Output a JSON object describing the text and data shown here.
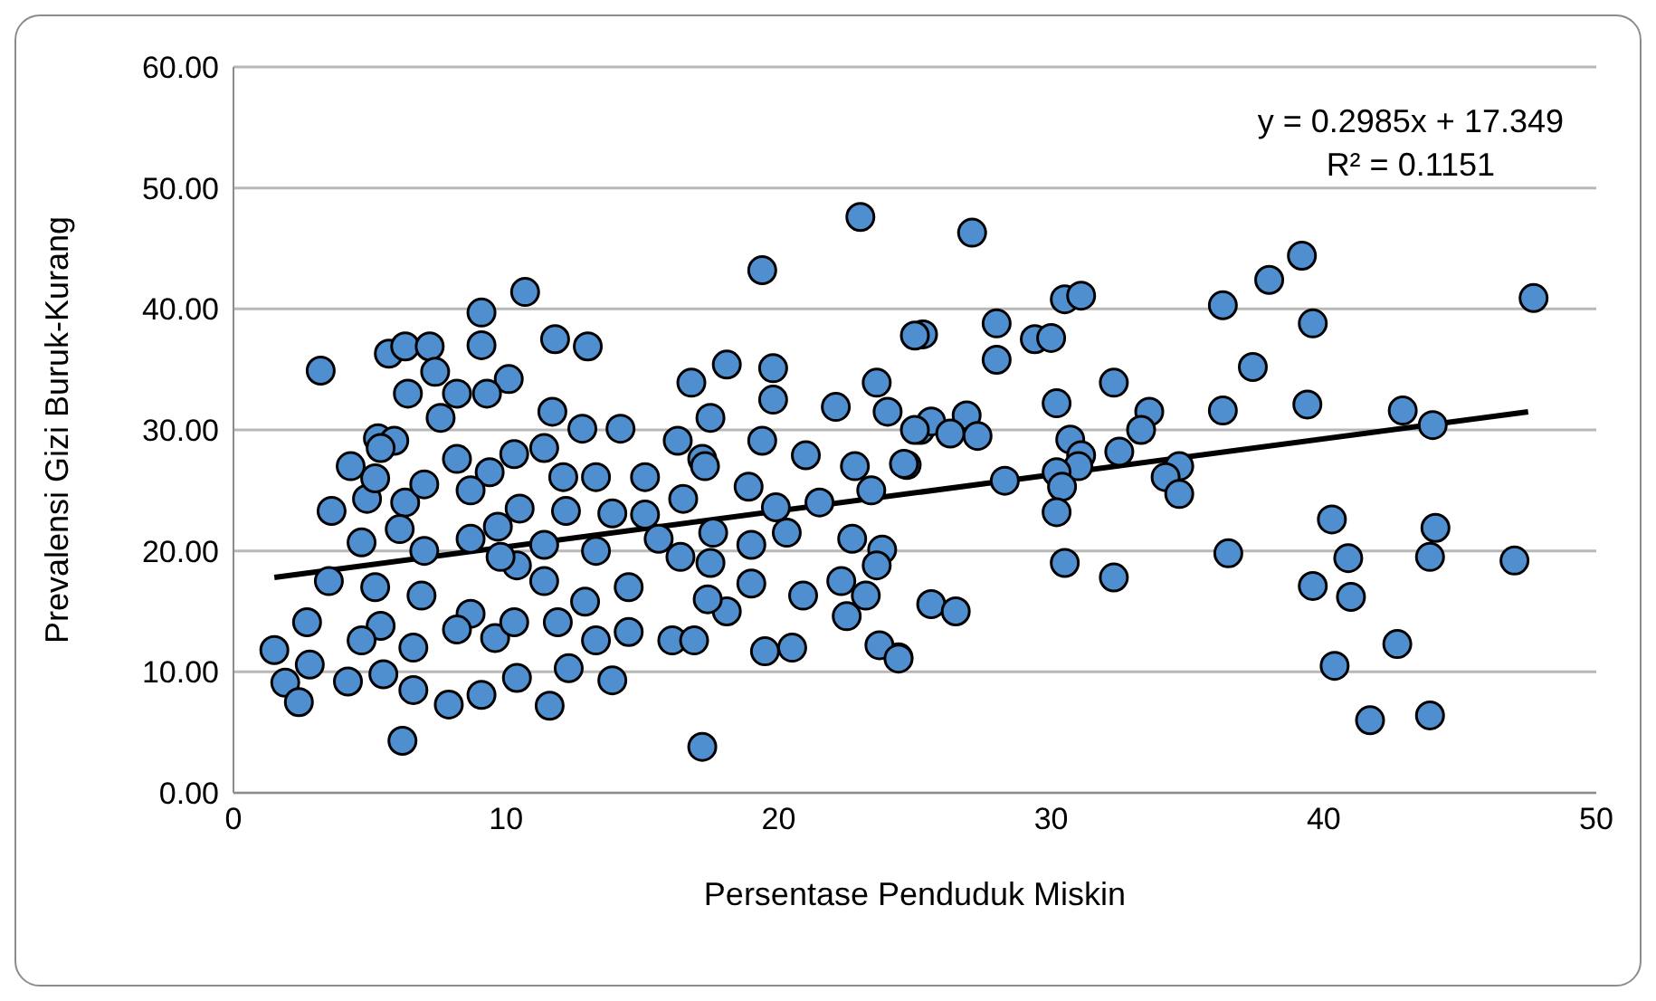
{
  "chart_data": {
    "type": "scatter",
    "xlabel": "Persentase Penduduk Miskin",
    "ylabel": "Prevalensi Gizi Buruk-Kurang",
    "xlim": [
      0,
      50
    ],
    "xticks": [
      0,
      10,
      20,
      30,
      40,
      50
    ],
    "ylim": [
      0,
      60
    ],
    "yticks": [
      {
        "value": 0,
        "label": "0.00"
      },
      {
        "value": 10,
        "label": "10.00"
      },
      {
        "value": 20,
        "label": "20.00"
      },
      {
        "value": 30,
        "label": "30.00"
      },
      {
        "value": 40,
        "label": "40.00"
      },
      {
        "value": 50,
        "label": "50.00"
      },
      {
        "value": 60,
        "label": "60.00"
      }
    ],
    "grid": "y",
    "legend": false,
    "marker": "circle",
    "annotations": [
      "y = 0.2985x + 17.349",
      "R² = 0.1151"
    ],
    "series": [
      {
        "color": "#4f8fcf",
        "x": [
          47.7,
          47.0,
          27.1,
          30.5,
          31.1,
          36.3,
          38.0,
          39.2,
          25.3,
          28.0,
          28.0,
          29.4,
          30.0,
          39.6,
          37.4,
          32.3,
          30.2,
          36.3,
          39.4,
          42.9,
          44.0,
          33.6,
          33.3,
          25.2,
          25.6,
          26.9,
          27.3,
          26.3,
          30.7,
          31.1,
          31.0,
          32.5,
          34.7,
          34.2,
          34.7,
          24.7,
          28.3,
          30.2,
          30.4,
          30.2,
          40.3,
          44.1,
          40.9,
          43.9,
          36.5,
          30.5,
          32.3,
          39.6,
          41.0,
          25.6,
          26.5,
          42.7,
          40.4,
          41.7,
          43.9,
          24.4,
          23.0,
          19.4,
          10.7,
          9.1,
          9.1,
          3.2,
          5.7,
          6.3,
          7.2,
          7.4,
          11.8,
          13.0,
          10.1,
          9.3,
          8.2,
          6.4,
          7.6,
          16.8,
          18.1,
          19.8,
          19.8,
          23.6,
          24.0,
          22.1,
          25.0,
          5.3,
          5.9,
          11.7,
          12.8,
          14.2,
          17.5,
          17.2,
          19.4,
          21.0,
          22.8,
          24.6,
          3.6,
          4.9,
          6.3,
          4.7,
          6.1,
          8.2,
          9.4,
          10.3,
          11.4,
          12.1,
          13.3,
          15.1,
          16.3,
          17.3,
          18.9,
          19.9,
          21.5,
          23.4,
          9.7,
          10.5,
          12.2,
          13.9,
          15.1,
          16.5,
          20.3,
          22.7,
          23.8,
          23.6,
          3.5,
          5.2,
          6.9,
          8.7,
          10.4,
          11.4,
          12.9,
          14.5,
          16.4,
          17.5,
          19.0,
          20.9,
          22.5,
          23.2,
          19.5,
          20.5,
          23.7,
          24.4,
          2.7,
          1.5,
          1.9,
          2.4,
          2.8,
          4.2,
          5.4,
          5.5,
          6.6,
          7.9,
          9.6,
          9.1,
          10.4,
          11.6,
          13.3,
          13.9,
          12.3,
          14.5,
          16.1,
          16.9,
          18.1,
          17.4,
          6.2,
          17.2,
          25.0,
          22.3,
          7.0,
          8.7,
          9.8,
          11.4,
          13.3,
          15.6,
          17.6,
          19.0,
          5.2,
          7.0,
          8.7,
          4.3,
          5.4,
          8.2,
          6.6,
          4.7,
          10.3,
          11.9
        ],
        "values": [
          40.9,
          19.2,
          46.3,
          40.8,
          41.1,
          40.3,
          42.4,
          44.4,
          37.9,
          38.8,
          35.8,
          37.5,
          37.6,
          38.8,
          35.2,
          33.9,
          32.2,
          31.6,
          32.1,
          31.6,
          30.4,
          31.5,
          30.0,
          30.0,
          30.7,
          31.2,
          29.5,
          29.7,
          29.2,
          27.9,
          27.0,
          28.2,
          27.0,
          26.1,
          24.7,
          27.1,
          25.8,
          26.5,
          25.3,
          23.2,
          22.6,
          21.9,
          19.4,
          19.5,
          19.8,
          19.0,
          17.8,
          17.1,
          16.2,
          15.6,
          15.0,
          12.3,
          10.5,
          6.0,
          6.4,
          11.2,
          47.6,
          43.2,
          41.4,
          39.7,
          37.0,
          34.9,
          36.3,
          36.9,
          36.9,
          34.8,
          37.5,
          36.9,
          34.2,
          33.0,
          33.0,
          33.0,
          31.0,
          33.9,
          35.4,
          35.1,
          32.5,
          33.9,
          31.5,
          31.9,
          37.8,
          29.3,
          29.1,
          31.5,
          30.1,
          30.1,
          31.0,
          27.6,
          29.1,
          27.9,
          27.0,
          27.2,
          23.3,
          24.3,
          24.0,
          20.7,
          21.8,
          27.6,
          26.5,
          28.0,
          28.5,
          26.1,
          26.1,
          26.1,
          29.1,
          27.0,
          25.3,
          23.6,
          24.0,
          25.0,
          22.0,
          23.5,
          23.3,
          23.1,
          23.0,
          24.3,
          21.5,
          21.0,
          20.1,
          18.8,
          17.5,
          17.0,
          16.3,
          14.8,
          18.8,
          17.5,
          15.8,
          17.0,
          19.5,
          19.0,
          17.3,
          16.3,
          14.6,
          16.3,
          11.7,
          12.0,
          12.2,
          11.1,
          14.1,
          11.8,
          9.1,
          7.5,
          10.6,
          9.2,
          13.8,
          9.8,
          8.5,
          7.3,
          12.8,
          8.1,
          9.5,
          7.2,
          12.6,
          9.3,
          10.3,
          13.3,
          12.6,
          12.6,
          15.0,
          16.0,
          4.3,
          3.8,
          30.0,
          17.5,
          20.0,
          21.0,
          19.5,
          20.5,
          20.0,
          21.0,
          21.5,
          20.5,
          26.0,
          25.5,
          25.0,
          27.0,
          28.5,
          13.5,
          12.0,
          12.6,
          14.1,
          14.1
        ]
      },
      {
        "type": "line",
        "color": "#000000",
        "marker": "none",
        "x": [
          1.5,
          47.5
        ],
        "values": [
          17.8,
          31.5
        ]
      }
    ]
  }
}
